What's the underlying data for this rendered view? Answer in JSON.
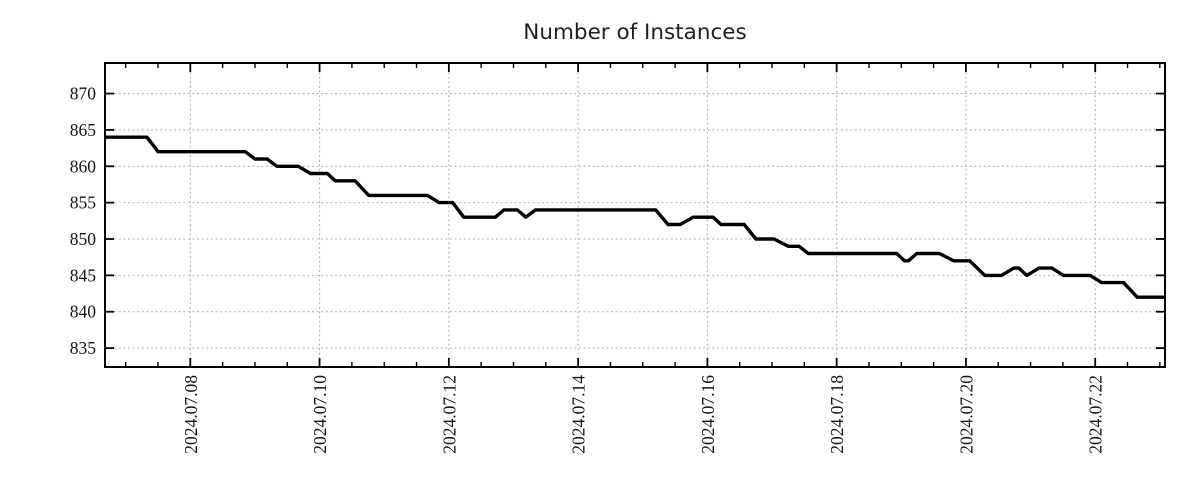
{
  "chart_data": {
    "type": "line",
    "title": "Number of Instances",
    "x_axis": {
      "unit": "date-of-july-2024-fractional-days",
      "range_days": [
        6.68,
        23.08
      ],
      "major_ticks": [
        {
          "day": 8,
          "label": "2024.07.08"
        },
        {
          "day": 10,
          "label": "2024.07.10"
        },
        {
          "day": 12,
          "label": "2024.07.12"
        },
        {
          "day": 14,
          "label": "2024.07.14"
        },
        {
          "day": 16,
          "label": "2024.07.16"
        },
        {
          "day": 18,
          "label": "2024.07.18"
        },
        {
          "day": 20,
          "label": "2024.07.20"
        },
        {
          "day": 22,
          "label": "2024.07.22"
        }
      ],
      "minor_tick_interval_days": 0.5,
      "label_rotation_deg": -90
    },
    "y_axis": {
      "range": [
        832.4,
        874.2
      ],
      "ticks": [
        835,
        840,
        845,
        850,
        855,
        860,
        865,
        870
      ],
      "tick_labels": [
        "835",
        "840",
        "845",
        "850",
        "855",
        "860",
        "865",
        "870"
      ]
    },
    "grid": {
      "show": true,
      "color": "#b5b5b5",
      "style": "dotted"
    },
    "colors": {
      "line": "#000000",
      "border": "#000000",
      "background": "#ffffff",
      "text": "#141414"
    },
    "series": [
      {
        "name": "instances",
        "line_width": 3.4,
        "points": [
          [
            6.68,
            864
          ],
          [
            7.33,
            864
          ],
          [
            7.5,
            862
          ],
          [
            8.85,
            862
          ],
          [
            9.0,
            861
          ],
          [
            9.19,
            861
          ],
          [
            9.34,
            860
          ],
          [
            9.67,
            860
          ],
          [
            9.86,
            859
          ],
          [
            10.12,
            859
          ],
          [
            10.24,
            858
          ],
          [
            10.55,
            858
          ],
          [
            10.76,
            856
          ],
          [
            11.67,
            856
          ],
          [
            11.85,
            855
          ],
          [
            12.06,
            855
          ],
          [
            12.23,
            853
          ],
          [
            12.72,
            853
          ],
          [
            12.85,
            854
          ],
          [
            13.06,
            854
          ],
          [
            13.19,
            853
          ],
          [
            13.34,
            854
          ],
          [
            15.2,
            854
          ],
          [
            15.39,
            852
          ],
          [
            15.58,
            852
          ],
          [
            15.78,
            853
          ],
          [
            16.09,
            853
          ],
          [
            16.21,
            852
          ],
          [
            16.57,
            852
          ],
          [
            16.75,
            850
          ],
          [
            17.03,
            850
          ],
          [
            17.25,
            849
          ],
          [
            17.42,
            849
          ],
          [
            17.56,
            848
          ],
          [
            18.93,
            848
          ],
          [
            19.05,
            847
          ],
          [
            19.11,
            847
          ],
          [
            19.24,
            848
          ],
          [
            19.59,
            848
          ],
          [
            19.81,
            847
          ],
          [
            20.06,
            847
          ],
          [
            20.29,
            845
          ],
          [
            20.55,
            845
          ],
          [
            20.74,
            846
          ],
          [
            20.82,
            846
          ],
          [
            20.94,
            845
          ],
          [
            21.13,
            846
          ],
          [
            21.33,
            846
          ],
          [
            21.51,
            845
          ],
          [
            21.92,
            845
          ],
          [
            22.1,
            844
          ],
          [
            22.44,
            844
          ],
          [
            22.65,
            842
          ],
          [
            23.08,
            842
          ]
        ]
      }
    ]
  }
}
